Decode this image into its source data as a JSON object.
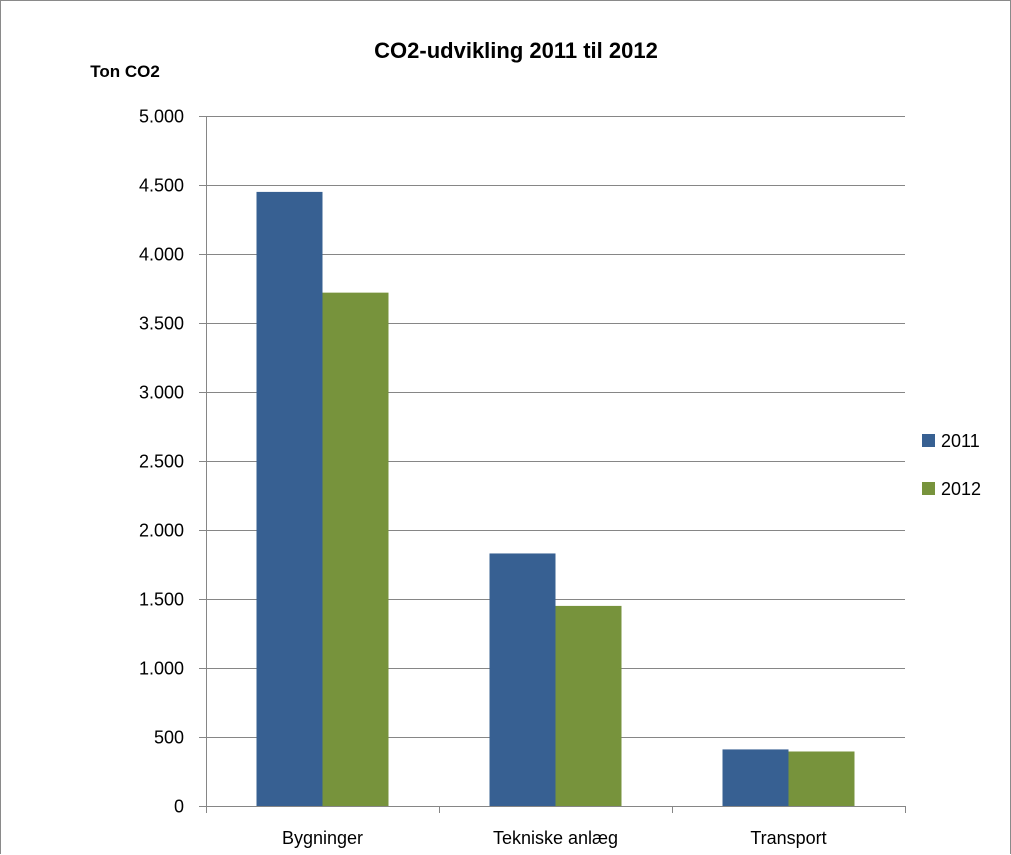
{
  "chart_data": {
    "type": "bar",
    "title": "CO2-udvikling 2011 til 2012",
    "xlabel": "",
    "ylabel": "Ton CO2",
    "categories": [
      "Bygninger",
      "Tekniske anlæg",
      "Transport"
    ],
    "series": [
      {
        "name": "2011",
        "values": [
          4450,
          1830,
          410
        ],
        "color": "#376092"
      },
      {
        "name": "2012",
        "values": [
          3720,
          1450,
          395
        ],
        "color": "#77933c"
      }
    ],
    "ylim": [
      0,
      5000
    ],
    "yticks": [
      0,
      500,
      1000,
      1500,
      2000,
      2500,
      3000,
      3500,
      4000,
      4500,
      5000
    ],
    "ytick_labels": [
      "0",
      "500",
      "1.000",
      "1.500",
      "2.000",
      "2.500",
      "3.000",
      "3.500",
      "4.000",
      "4.500",
      "5.000"
    ],
    "grid": true,
    "gridline_color": "#868686",
    "legend": "right"
  }
}
